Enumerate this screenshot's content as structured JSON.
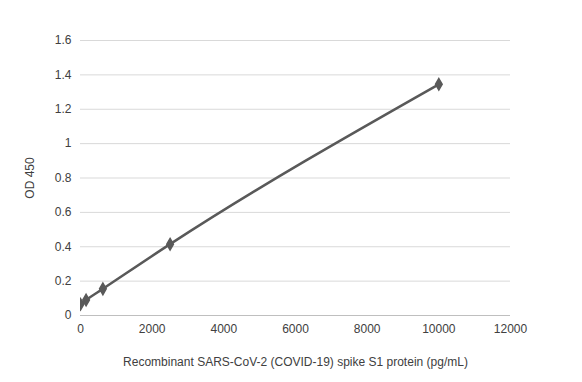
{
  "chart_data": {
    "type": "line",
    "x_label": "Recombinant SARS-CoV-2 (COVID-19) spike S1 protein (pg/mL)",
    "y_label": "OD 450",
    "x": [
      0,
      156,
      625,
      2500,
      10000
    ],
    "series": [
      {
        "name": "OD 450",
        "color": "#595959",
        "marker": "diamond",
        "line_style": "solid",
        "values": [
          0.065,
          0.09,
          0.155,
          0.415,
          1.345
        ]
      }
    ],
    "xlim": [
      0,
      12000
    ],
    "xticks": [
      0,
      2000,
      4000,
      6000,
      8000,
      10000,
      12000
    ],
    "ylim": [
      0,
      1.6
    ],
    "yticks": [
      0,
      0.2,
      0.4,
      0.6,
      0.8,
      1,
      1.2,
      1.4,
      1.6
    ],
    "grid": true
  }
}
